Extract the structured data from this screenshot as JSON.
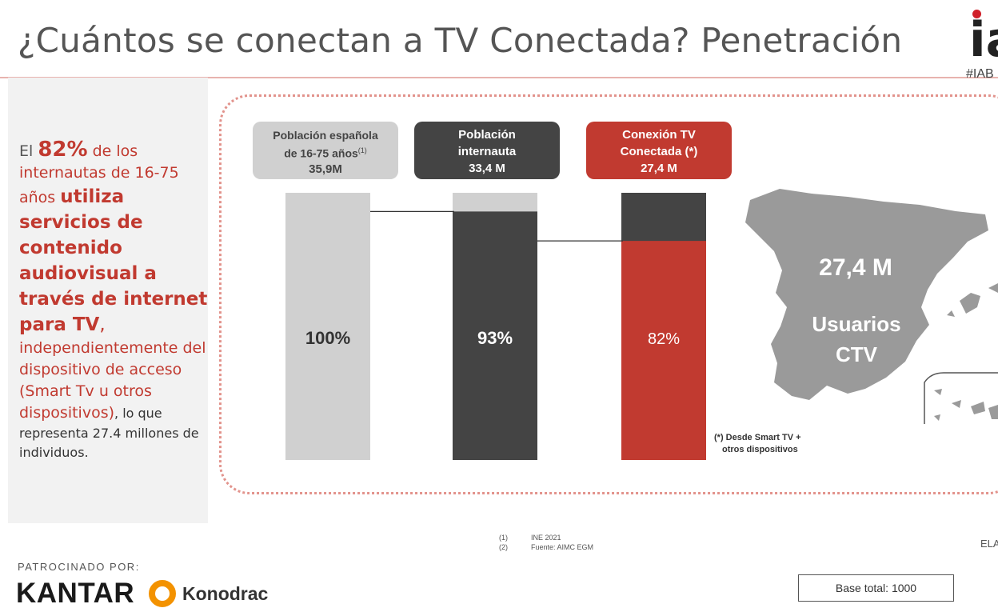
{
  "title": "¿Cuántos se conectan a TV Conectada? Penetración",
  "logo": {
    "letters": "ia",
    "tag": "#IAB"
  },
  "side_text": {
    "p1": "El ",
    "p2": "82%",
    "p3": " de los internautas de 16-75 años ",
    "p4": "utiliza servicios de contenido audiovisual a través de internet para TV",
    "p5": ",",
    "p6": " independientemente del dispositivo de acceso (Smart Tv u otros dispositivos)",
    "p7": ", lo que representa 27.4 millones de individuos."
  },
  "headers": [
    {
      "line1": "Población española",
      "line2": "de 16-75 años",
      "sup": "(1)",
      "value": "35,9M"
    },
    {
      "line1": "Población",
      "line2": "internauta",
      "value": "33,4 M"
    },
    {
      "line1": "Conexión TV",
      "line2": "Conectada (*)",
      "value": "27,4 M"
    }
  ],
  "chart_data": {
    "type": "bar",
    "categories": [
      "Población española de 16-75 años",
      "Población internauta",
      "Conexión TV Conectada (*)"
    ],
    "values": [
      100,
      93,
      82
    ],
    "value_labels": [
      "100%",
      "93%",
      "82%"
    ],
    "units": "%",
    "ylim": [
      0,
      100
    ],
    "bar_colors": [
      "#d0d0d0",
      "#444444",
      "#c13a30"
    ],
    "remainder_colors": [
      null,
      "#d0d0d0",
      "#444444"
    ],
    "label_colors": [
      "#333333",
      "#ffffff",
      "#ffffff"
    ]
  },
  "map": {
    "value": "27,4 M",
    "label_line1": "Usuarios",
    "label_line2": "CTV",
    "color": "#9a9a9a"
  },
  "footnote_ctv": {
    "line1": "(*) Desde Smart TV +",
    "line2": "otros dispositivos"
  },
  "references": [
    {
      "n": "(1)",
      "text": "INE 2021"
    },
    {
      "n": "(2)",
      "text": "Fuente: AIMC EGM"
    }
  ],
  "ela": "ELA",
  "sponsor": {
    "label": "PATROCINADO POR:",
    "brand1": "KANTAR",
    "brand2": "Konodrac"
  },
  "base": "Base total: 1000",
  "colors": {
    "accent": "#c13a30",
    "dark": "#444444",
    "light": "#d0d0d0"
  }
}
